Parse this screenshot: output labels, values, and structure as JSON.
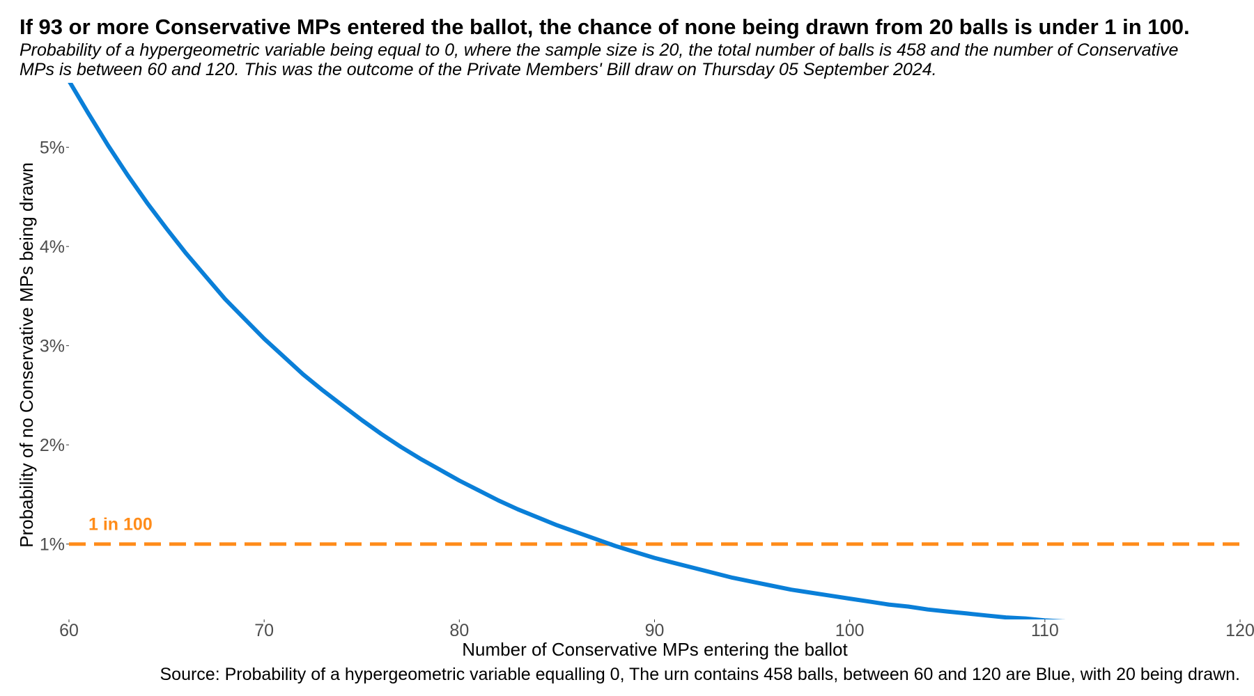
{
  "chart_data": {
    "type": "line",
    "title": "If 93 or more Conservative MPs entered the ballot, the chance of none being drawn from 20 balls is under 1 in 100.",
    "subtitle": "Probability of a hypergeometric variable being equal to 0, where the sample size is 20, the total number of balls is 458 and the number of Conservative MPs is between 60 and 120. This was the outcome of the Private Members' Bill draw on Thursday 05 September 2024.",
    "caption": "Source: Probability of a hypergeometric variable equalling 0, The urn contains 458 balls, between 60 and 120 are Blue, with 20 being drawn.",
    "xlabel": "Number of Conservative MPs entering the ballot",
    "ylabel": "Probability of no Conservative MPs being drawn",
    "x_ticks": [
      60,
      70,
      80,
      90,
      100,
      110,
      120
    ],
    "x_tick_labels": [
      "60",
      "70",
      "80",
      "90",
      "100",
      "110",
      "120"
    ],
    "y_ticks": [
      0.01,
      0.02,
      0.03,
      0.04,
      0.05
    ],
    "y_tick_labels": [
      "1%",
      "2%",
      "3%",
      "4%",
      "5%"
    ],
    "xlim": [
      60,
      120
    ],
    "ylim": [
      0.0024,
      0.0565
    ],
    "grid": false,
    "series": [
      {
        "color": "#0a7fd8",
        "x": [
          60,
          61,
          62,
          63,
          64,
          65,
          66,
          67,
          68,
          69,
          70,
          71,
          72,
          73,
          74,
          75,
          76,
          77,
          78,
          79,
          80,
          81,
          82,
          83,
          84,
          85,
          86,
          87,
          88,
          89,
          90,
          91,
          92,
          93,
          94,
          95,
          96,
          97,
          98,
          99,
          100,
          101,
          102,
          103,
          104,
          105,
          106,
          107,
          108,
          109,
          110,
          111,
          112,
          113,
          114,
          115,
          116,
          117,
          117,
          118,
          119,
          120
        ],
        "y": [
          0.0567,
          0.0534,
          0.0502,
          0.0472,
          0.0444,
          0.0418,
          0.0393,
          0.037,
          0.0347,
          0.0327,
          0.0307,
          0.0289,
          0.0271,
          0.0255,
          0.024,
          0.0225,
          0.0211,
          0.0198,
          0.0186,
          0.0175,
          0.0164,
          0.0154,
          0.0144,
          0.0135,
          0.0127,
          0.0119,
          0.0112,
          0.0105,
          0.0098,
          0.0092,
          0.0086,
          0.0081,
          0.0076,
          0.0071,
          0.0066,
          0.0062,
          0.0058,
          0.0054,
          0.0051,
          0.0048,
          0.0045,
          0.0042,
          0.0039,
          0.0037,
          0.0034,
          0.0032,
          0.003,
          0.0028,
          0.0026,
          0.0025,
          0.0023,
          0.0022,
          0.002,
          0.0019,
          0.0018,
          0.0017,
          0.0016,
          0.0015,
          0.0015,
          0.0014,
          0.0013,
          0.0012
        ]
      }
    ],
    "reference_line": {
      "y": 0.01,
      "label": "1 in 100",
      "color": "#ff8c1a",
      "style": "dashed"
    }
  }
}
